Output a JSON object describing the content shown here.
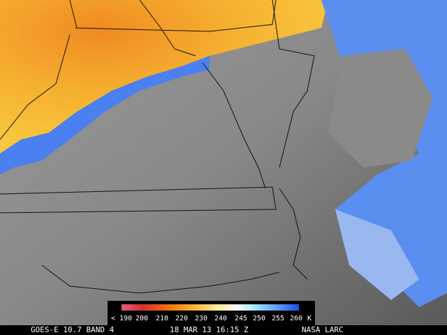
{
  "colorbar": {
    "labels": [
      "< 190",
      "200",
      "210",
      "220",
      "230",
      "240",
      "245",
      "250",
      "255",
      "260",
      "K"
    ]
  },
  "footer": {
    "satellite": "GOES-E 10.7 BAND 4",
    "datetime": "18 MAR 13 16:15 Z",
    "source": "NASA LARC"
  }
}
